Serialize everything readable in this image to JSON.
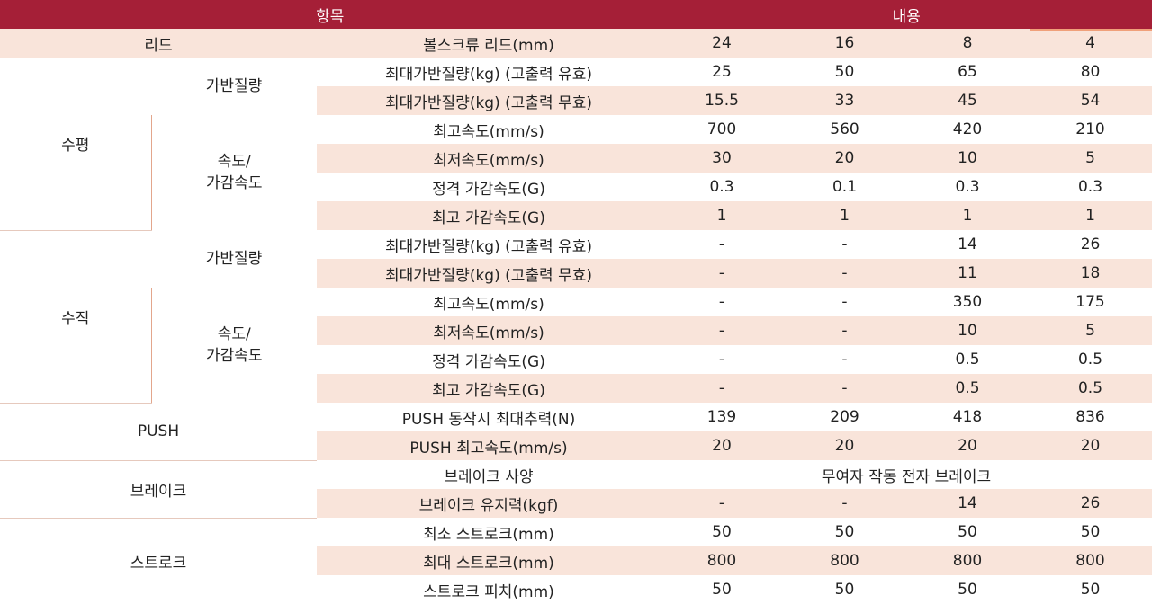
{
  "header": {
    "item": "항목",
    "content": "내용"
  },
  "lead_row": {
    "label": "리드",
    "name": "볼스크류 리드(mm)",
    "values": [
      "24",
      "16",
      "8",
      "4"
    ]
  },
  "horizontal": {
    "label": "수평",
    "payload": {
      "label": "가반질량",
      "rows": [
        {
          "name": "최대가반질량(kg) (고출력 유효)",
          "values": [
            "25",
            "50",
            "65",
            "80"
          ]
        },
        {
          "name": "최대가반질량(kg) (고출력 무효)",
          "values": [
            "15.5",
            "33",
            "45",
            "54"
          ]
        }
      ]
    },
    "speed": {
      "label_line1": "속도/",
      "label_line2": "가감속도",
      "rows": [
        {
          "name": "최고속도(mm/s)",
          "values": [
            "700",
            "560",
            "420",
            "210"
          ]
        },
        {
          "name": "최저속도(mm/s)",
          "values": [
            "30",
            "20",
            "10",
            "5"
          ]
        },
        {
          "name": "정격 가감속도(G)",
          "values": [
            "0.3",
            "0.1",
            "0.3",
            "0.3"
          ]
        },
        {
          "name": "최고 가감속도(G)",
          "values": [
            "1",
            "1",
            "1",
            "1"
          ]
        }
      ]
    }
  },
  "vertical": {
    "label": "수직",
    "payload": {
      "label": "가반질량",
      "rows": [
        {
          "name": "최대가반질량(kg) (고출력 유효)",
          "values": [
            "-",
            "-",
            "14",
            "26"
          ]
        },
        {
          "name": "최대가반질량(kg) (고출력 무효)",
          "values": [
            "-",
            "-",
            "11",
            "18"
          ]
        }
      ]
    },
    "speed": {
      "label_line1": "속도/",
      "label_line2": "가감속도",
      "rows": [
        {
          "name": "최고속도(mm/s)",
          "values": [
            "-",
            "-",
            "350",
            "175"
          ]
        },
        {
          "name": "최저속도(mm/s)",
          "values": [
            "-",
            "-",
            "10",
            "5"
          ]
        },
        {
          "name": "정격 가감속도(G)",
          "values": [
            "-",
            "-",
            "0.5",
            "0.5"
          ]
        },
        {
          "name": "최고 가감속도(G)",
          "values": [
            "-",
            "-",
            "0.5",
            "0.5"
          ]
        }
      ]
    }
  },
  "push": {
    "label": "PUSH",
    "rows": [
      {
        "name": "PUSH 동작시 최대추력(N)",
        "values": [
          "139",
          "209",
          "418",
          "836"
        ]
      },
      {
        "name": "PUSH 최고속도(mm/s)",
        "values": [
          "20",
          "20",
          "20",
          "20"
        ]
      }
    ]
  },
  "brake": {
    "label": "브레이크",
    "spec_name": "브레이크 사양",
    "spec_value": "무여자 작동 전자 브레이크",
    "hold": {
      "name": "브레이크 유지력(kgf)",
      "values": [
        "-",
        "-",
        "14",
        "26"
      ]
    }
  },
  "stroke": {
    "label": "스트로크",
    "rows": [
      {
        "name": "최소 스트로크(mm)",
        "values": [
          "50",
          "50",
          "50",
          "50"
        ]
      },
      {
        "name": "최대 스트로크(mm)",
        "values": [
          "800",
          "800",
          "800",
          "800"
        ]
      },
      {
        "name": "스트로크 피치(mm)",
        "values": [
          "50",
          "50",
          "50",
          "50"
        ]
      }
    ]
  },
  "colors": {
    "header_bg": "#a51f37",
    "header_text": "#ffffff",
    "shade": "#f9e4da"
  }
}
